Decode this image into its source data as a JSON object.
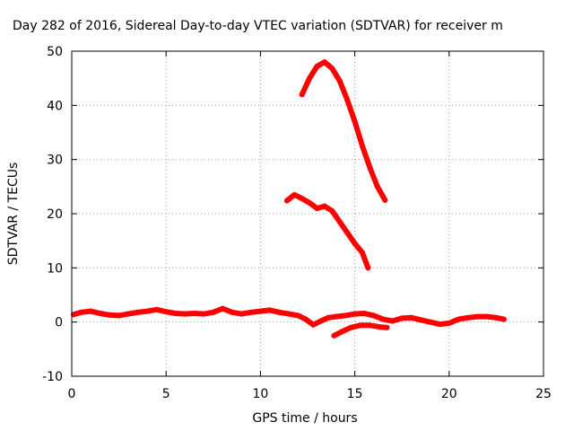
{
  "chart_data": {
    "type": "scatter",
    "title": "Day 282 of 2016, Sidereal Day-to-day VTEC variation (SDTVAR) for receiver m",
    "xlabel": "GPS time / hours",
    "ylabel": "SDTVAR / TECUs",
    "xlim": [
      0,
      25
    ],
    "ylim": [
      -10,
      50
    ],
    "x_ticks": [
      0,
      5,
      10,
      15,
      20,
      25
    ],
    "y_ticks": [
      -10,
      0,
      10,
      20,
      30,
      40,
      50
    ],
    "grid": true,
    "legend": "none",
    "series_color": "#ff0000",
    "series": [
      {
        "name": "arc-a",
        "points": [
          [
            12.2,
            42
          ],
          [
            12.6,
            45
          ],
          [
            13.0,
            47.2
          ],
          [
            13.4,
            48
          ],
          [
            13.8,
            46.8
          ],
          [
            14.2,
            44.5
          ],
          [
            14.6,
            41
          ],
          [
            15.0,
            37
          ],
          [
            15.4,
            32.5
          ],
          [
            15.8,
            28.5
          ],
          [
            16.2,
            25
          ],
          [
            16.6,
            22.5
          ]
        ]
      },
      {
        "name": "arc-b",
        "points": [
          [
            11.4,
            22.4
          ],
          [
            11.8,
            23.5
          ],
          [
            12.2,
            22.8
          ],
          [
            12.6,
            22
          ],
          [
            13.0,
            21
          ],
          [
            13.4,
            21.4
          ],
          [
            13.8,
            20.5
          ],
          [
            14.2,
            18.5
          ],
          [
            14.6,
            16.5
          ],
          [
            15.0,
            14.5
          ],
          [
            15.4,
            12.8
          ],
          [
            15.7,
            10
          ]
        ]
      },
      {
        "name": "arc-c",
        "points": [
          [
            0.1,
            1.4
          ],
          [
            0.5,
            1.8
          ],
          [
            1.0,
            2.0
          ],
          [
            1.5,
            1.6
          ],
          [
            2.0,
            1.3
          ],
          [
            2.5,
            1.2
          ],
          [
            3.0,
            1.5
          ],
          [
            3.5,
            1.8
          ],
          [
            4.0,
            2.0
          ],
          [
            4.5,
            2.3
          ],
          [
            5.0,
            1.9
          ],
          [
            5.5,
            1.6
          ],
          [
            6.0,
            1.5
          ],
          [
            6.5,
            1.6
          ],
          [
            7.0,
            1.5
          ],
          [
            7.5,
            1.8
          ],
          [
            8.0,
            2.5
          ],
          [
            8.5,
            1.8
          ],
          [
            9.0,
            1.5
          ],
          [
            9.5,
            1.8
          ],
          [
            10.0,
            2.0
          ],
          [
            10.5,
            2.2
          ],
          [
            11.0,
            1.8
          ],
          [
            11.5,
            1.5
          ],
          [
            12.0,
            1.2
          ],
          [
            12.4,
            0.5
          ],
          [
            12.8,
            -0.5
          ],
          [
            13.2,
            0.2
          ],
          [
            13.6,
            0.8
          ],
          [
            14.0,
            1.0
          ],
          [
            14.5,
            1.2
          ],
          [
            15.0,
            1.5
          ],
          [
            15.5,
            1.6
          ],
          [
            16.0,
            1.2
          ],
          [
            16.5,
            0.5
          ],
          [
            17.0,
            0.2
          ],
          [
            17.5,
            0.7
          ],
          [
            18.0,
            0.8
          ],
          [
            18.5,
            0.4
          ],
          [
            19.0,
            0
          ],
          [
            19.5,
            -0.4
          ],
          [
            20.0,
            -0.2
          ],
          [
            20.5,
            0.5
          ],
          [
            21.0,
            0.8
          ],
          [
            21.5,
            1.0
          ],
          [
            22.0,
            1.0
          ],
          [
            22.5,
            0.8
          ],
          [
            22.9,
            0.5
          ]
        ]
      },
      {
        "name": "arc-d",
        "points": [
          [
            13.9,
            -2.5
          ],
          [
            14.3,
            -1.8
          ],
          [
            14.8,
            -1.0
          ],
          [
            15.3,
            -0.6
          ],
          [
            15.8,
            -0.6
          ],
          [
            16.3,
            -0.9
          ],
          [
            16.7,
            -1.0
          ]
        ]
      }
    ]
  }
}
